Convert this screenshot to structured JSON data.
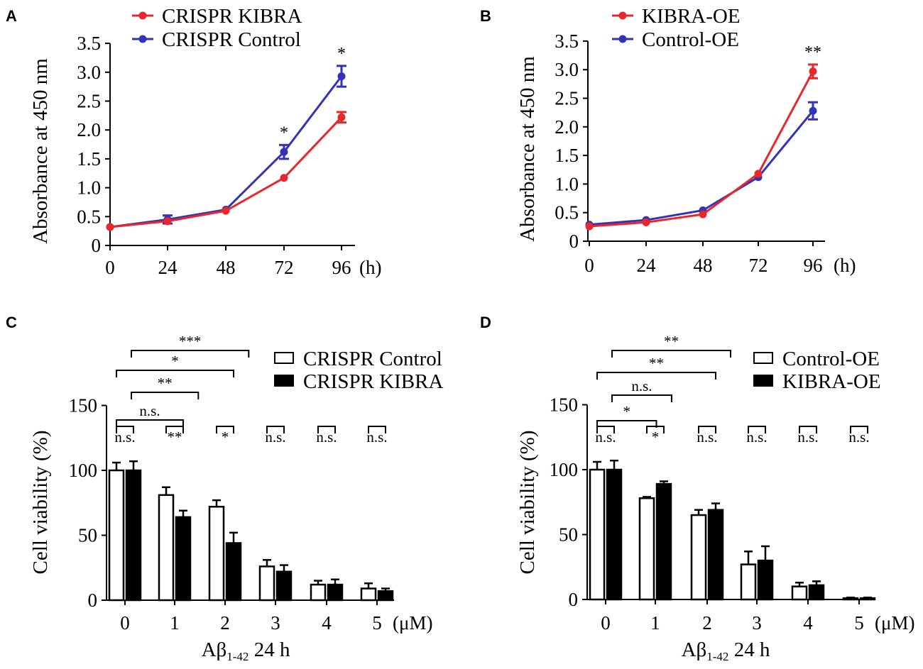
{
  "panel_labels": [
    "A",
    "B",
    "C",
    "D"
  ],
  "colors": {
    "red": "#e8262b",
    "blue": "#3333b8",
    "black": "#000000",
    "white": "#ffffff"
  },
  "chart_data": [
    {
      "panel": "A",
      "type": "line",
      "x": [
        0,
        24,
        48,
        72,
        96
      ],
      "xtick_labels": [
        "0",
        "24",
        "48",
        "72",
        "96"
      ],
      "x_unit": "(h)",
      "ylabel": "Absorbance at 450 nm",
      "ylim": [
        0,
        3.5
      ],
      "yticks": [
        0,
        0.5,
        1.0,
        1.5,
        2.0,
        2.5,
        3.0,
        3.5
      ],
      "ytick_labels": [
        "0",
        "0.5",
        "1.0",
        "1.5",
        "2.0",
        "2.5",
        "3.0",
        "3.5"
      ],
      "series": [
        {
          "name": "CRISPR KIBRA",
          "color": "#e8262b",
          "values": [
            0.32,
            0.42,
            0.6,
            1.17,
            2.22
          ],
          "errors": [
            0.02,
            0.03,
            0.02,
            0.02,
            0.09
          ]
        },
        {
          "name": "CRISPR Control",
          "color": "#3333b8",
          "values": [
            0.32,
            0.45,
            0.62,
            1.62,
            2.93
          ],
          "errors": [
            0.02,
            0.07,
            0.02,
            0.12,
            0.18
          ]
        }
      ],
      "annotations": [
        {
          "x": 72,
          "text": "*"
        },
        {
          "x": 96,
          "text": "*"
        }
      ]
    },
    {
      "panel": "B",
      "type": "line",
      "x": [
        0,
        24,
        48,
        72,
        96
      ],
      "xtick_labels": [
        "0",
        "24",
        "48",
        "72",
        "96"
      ],
      "x_unit": "(h)",
      "ylabel": "Absorbance at 450 nm",
      "ylim": [
        0,
        3.5
      ],
      "yticks": [
        0,
        0.5,
        1.0,
        1.5,
        2.0,
        2.5,
        3.0,
        3.5
      ],
      "ytick_labels": [
        "0",
        "0.5",
        "1.0",
        "1.5",
        "2.0",
        "2.5",
        "3.0",
        "3.5"
      ],
      "series": [
        {
          "name": "KIBRA-OE",
          "color": "#e8262b",
          "values": [
            0.26,
            0.33,
            0.47,
            1.18,
            2.97
          ],
          "errors": [
            0.02,
            0.02,
            0.03,
            0.03,
            0.12
          ]
        },
        {
          "name": "Control-OE",
          "color": "#3333b8",
          "values": [
            0.29,
            0.37,
            0.54,
            1.12,
            2.28
          ],
          "errors": [
            0.02,
            0.02,
            0.02,
            0.03,
            0.15
          ]
        }
      ],
      "annotations": [
        {
          "x": 96,
          "text": "**"
        }
      ]
    },
    {
      "panel": "C",
      "type": "bar",
      "categories": [
        "0",
        "1",
        "2",
        "3",
        "4",
        "5"
      ],
      "x_unit": "(μM)",
      "xlabel_prefix": "Aβ",
      "xlabel_sub": "1-42",
      "xlabel_suffix": " 24 h",
      "ylabel": "Cell viability (%)",
      "ylim": [
        0,
        150
      ],
      "yticks": [
        0,
        50,
        100,
        150
      ],
      "ytick_labels": [
        "0",
        "50",
        "100",
        "150"
      ],
      "series": [
        {
          "name": "CRISPR Control",
          "fill": "#ffffff",
          "values": [
            100,
            81,
            72,
            26,
            12,
            9
          ],
          "errors": [
            6,
            6,
            5,
            5,
            3,
            4
          ]
        },
        {
          "name": "CRISPR KIBRA",
          "fill": "#000000",
          "values": [
            100,
            64,
            44,
            22,
            12,
            7
          ],
          "errors": [
            7,
            5,
            8,
            5,
            4,
            2
          ]
        }
      ],
      "pair_sig": [
        "n.s.",
        "**",
        "*",
        "n.s.",
        "n.s.",
        "n.s."
      ],
      "bracket_sig": [
        {
          "from": 0,
          "to": 1,
          "text": "n.s."
        },
        {
          "from": 0.3,
          "to": 1.3,
          "text": "**"
        },
        {
          "from": 0,
          "to": 2,
          "text": "*"
        },
        {
          "from": 0.3,
          "to": 2.3,
          "text": "***"
        }
      ]
    },
    {
      "panel": "D",
      "type": "bar",
      "categories": [
        "0",
        "1",
        "2",
        "3",
        "4",
        "5"
      ],
      "x_unit": "(μM)",
      "xlabel_prefix": "Aβ",
      "xlabel_sub": "1-42",
      "xlabel_suffix": " 24 h",
      "ylabel": "Cell viability (%)",
      "ylim": [
        0,
        150
      ],
      "yticks": [
        0,
        50,
        100,
        150
      ],
      "ytick_labels": [
        "0",
        "50",
        "100",
        "150"
      ],
      "series": [
        {
          "name": "Control-OE",
          "fill": "#ffffff",
          "values": [
            100,
            78,
            65,
            27,
            10,
            1
          ],
          "errors": [
            6,
            1,
            4,
            10,
            3,
            0.5
          ]
        },
        {
          "name": "KIBRA-OE",
          "fill": "#000000",
          "values": [
            100,
            89,
            69,
            30,
            11,
            1
          ],
          "errors": [
            7,
            2,
            5,
            11,
            3,
            0.5
          ]
        }
      ],
      "pair_sig": [
        "n.s.",
        "*",
        "n.s.",
        "n.s.",
        "n.s.",
        "n.s."
      ],
      "bracket_sig": [
        {
          "from": 0,
          "to": 0.85,
          "text": "*"
        },
        {
          "from": 0.3,
          "to": 1.15,
          "text": "n.s."
        },
        {
          "from": 0,
          "to": 2,
          "text": "**"
        },
        {
          "from": 0.3,
          "to": 2.3,
          "text": "**"
        }
      ]
    }
  ]
}
